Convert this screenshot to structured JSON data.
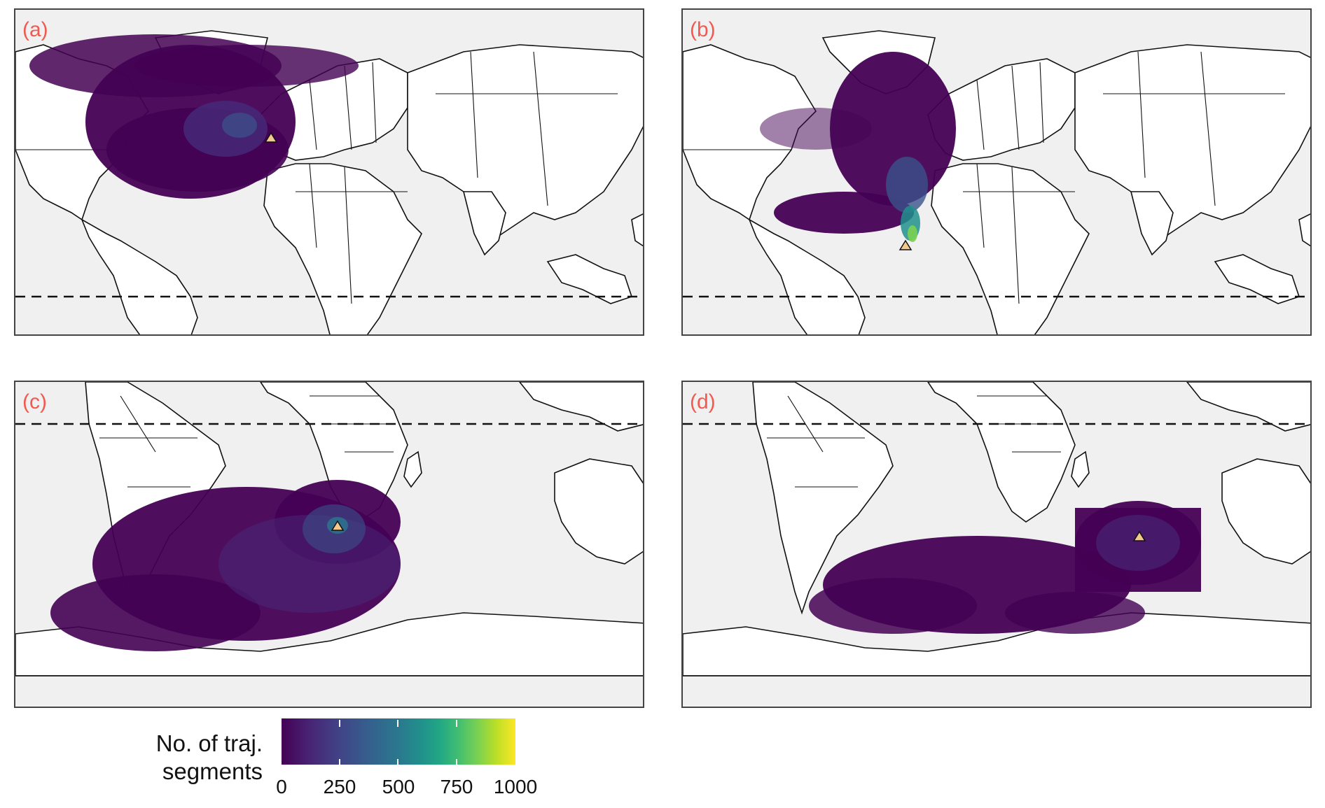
{
  "panels": [
    {
      "id": "a",
      "label": "(a)",
      "source": [
        0,
        50
      ],
      "dashed_lat": -10,
      "orientation": "north"
    },
    {
      "id": "b",
      "label": "(b)",
      "source": [
        -18,
        15
      ],
      "dashed_lat": -10,
      "orientation": "north"
    },
    {
      "id": "c",
      "label": "(c)",
      "source": [
        20,
        -34
      ],
      "dashed_lat": 10,
      "orientation": "south"
    },
    {
      "id": "d",
      "label": "(d)",
      "source": [
        115,
        -32
      ],
      "dashed_lat": 10,
      "orientation": "south"
    }
  ],
  "legend": {
    "title_line1": "No. of traj.",
    "title_line2": "segments",
    "ticks": [
      "0",
      "250",
      "500",
      "750",
      "1000"
    ],
    "range": [
      0,
      1000
    ],
    "colormap": "viridis"
  },
  "colors": {
    "ocean": "#f0f0f0",
    "land": "#ffffff",
    "label": "#f05a50",
    "marker": "#f2c98a",
    "density_low": "#440154",
    "density_high": "#fde725"
  },
  "icons": [
    "source-triangle-icon"
  ]
}
